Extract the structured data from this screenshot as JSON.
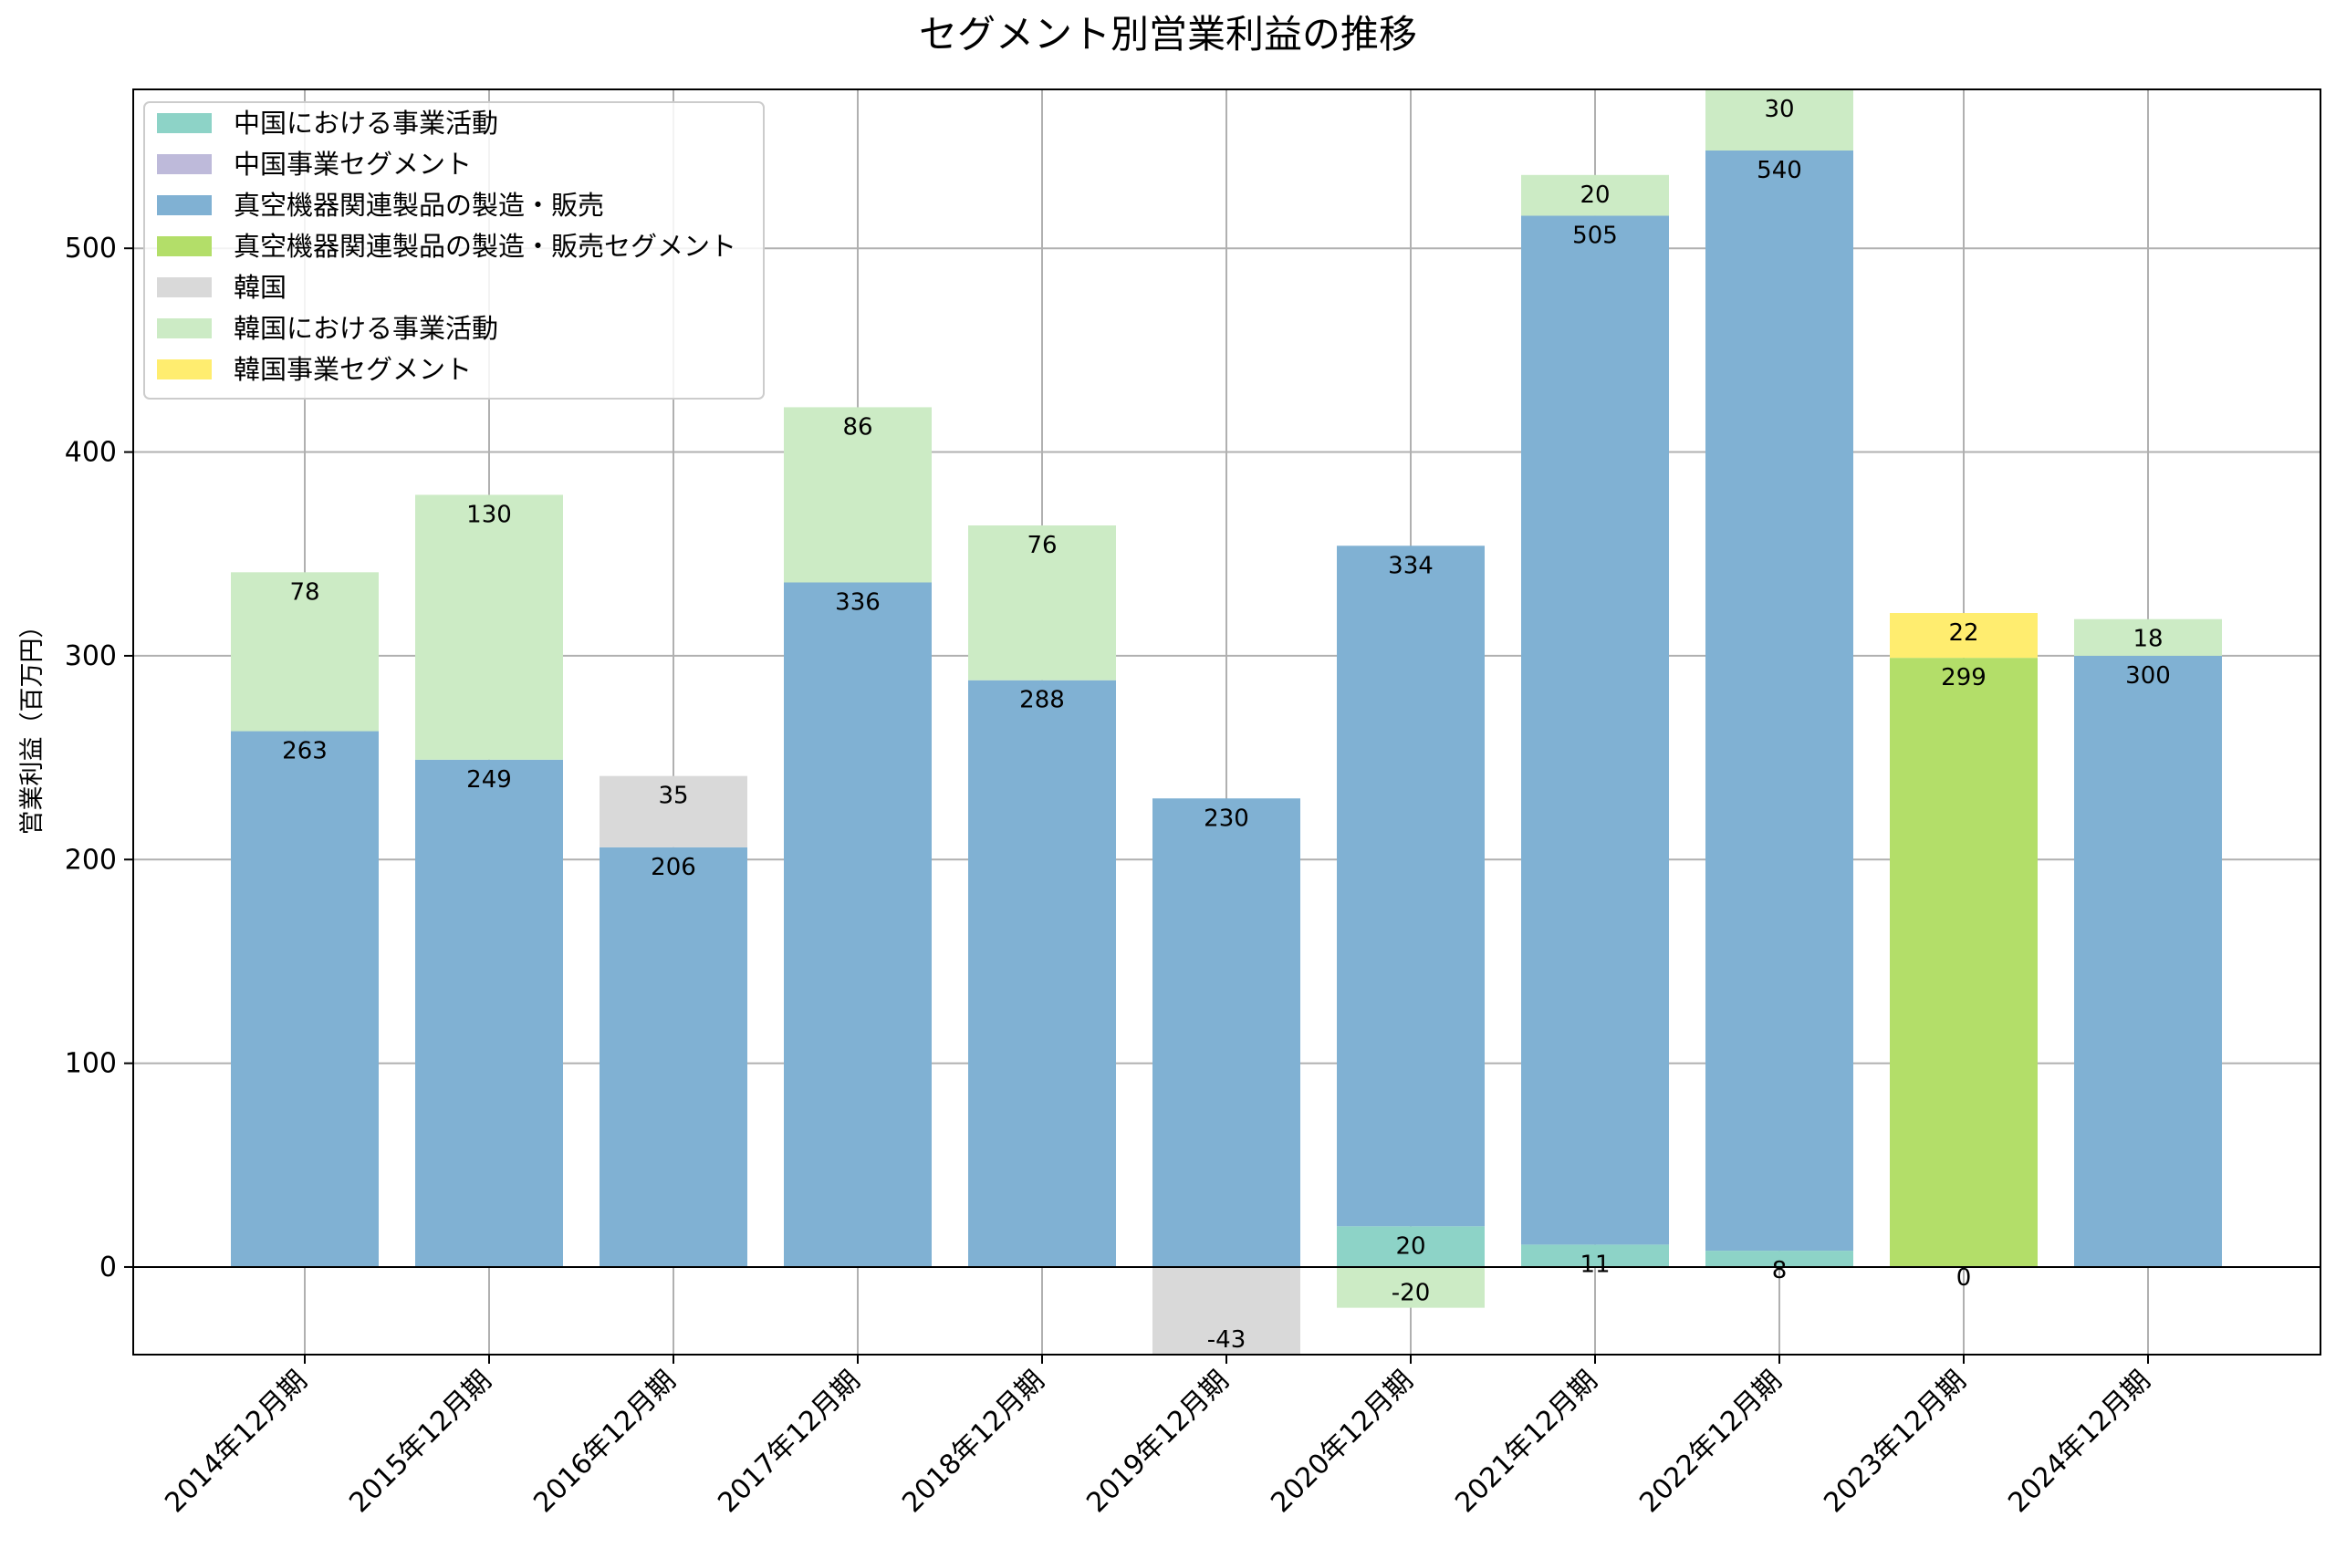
{
  "chart_data": {
    "type": "bar",
    "stacked": true,
    "title": "セグメント別営業利益の推移",
    "xlabel": "",
    "ylabel": "営業利益（百万円）",
    "ylim": [
      -43,
      578
    ],
    "yticks": [
      0,
      100,
      200,
      300,
      400,
      500
    ],
    "grid": true,
    "legend_position": "top-left",
    "categories": [
      "2014年12月期",
      "2015年12月期",
      "2016年12月期",
      "2017年12月期",
      "2018年12月期",
      "2019年12月期",
      "2020年12月期",
      "2021年12月期",
      "2022年12月期",
      "2023年12月期",
      "2024年12月期"
    ],
    "series": [
      {
        "name": "中国における事業活動",
        "color": "#8dd3c7",
        "values": [
          null,
          null,
          null,
          null,
          null,
          null,
          20,
          11,
          8,
          null,
          null
        ]
      },
      {
        "name": "中国事業セグメント",
        "color": "#bebada",
        "values": [
          null,
          null,
          null,
          null,
          null,
          null,
          null,
          null,
          null,
          null,
          null
        ]
      },
      {
        "name": "真空機器関連製品の製造・販売",
        "color": "#80b1d3",
        "values": [
          263,
          249,
          206,
          336,
          288,
          230,
          334,
          505,
          540,
          null,
          300
        ]
      },
      {
        "name": "真空機器関連製品の製造・販売セグメント",
        "color": "#b3de69",
        "values": [
          null,
          null,
          null,
          null,
          null,
          null,
          null,
          null,
          null,
          299,
          null
        ]
      },
      {
        "name": "韓国",
        "color": "#d9d9d9",
        "values": [
          null,
          null,
          35,
          null,
          null,
          -43,
          null,
          null,
          null,
          null,
          null
        ]
      },
      {
        "name": "韓国における事業活動",
        "color": "#ccebc5",
        "values": [
          78,
          130,
          null,
          86,
          76,
          null,
          -20,
          20,
          30,
          null,
          18
        ]
      },
      {
        "name": "韓国事業セグメント",
        "color": "#ffed6f",
        "values": [
          null,
          null,
          null,
          null,
          null,
          null,
          null,
          null,
          null,
          22,
          null
        ]
      }
    ],
    "data_labels": [
      [
        "263",
        "78"
      ],
      [
        "249",
        "130"
      ],
      [
        "206",
        "35"
      ],
      [
        "336",
        "86"
      ],
      [
        "288",
        "76"
      ],
      [
        "230",
        "-43"
      ],
      [
        "334",
        "20",
        "-20"
      ],
      [
        "505",
        "11",
        "20"
      ],
      [
        "540",
        "8",
        "30"
      ],
      [
        "299",
        "0",
        "22"
      ],
      [
        "300",
        "18"
      ]
    ]
  }
}
